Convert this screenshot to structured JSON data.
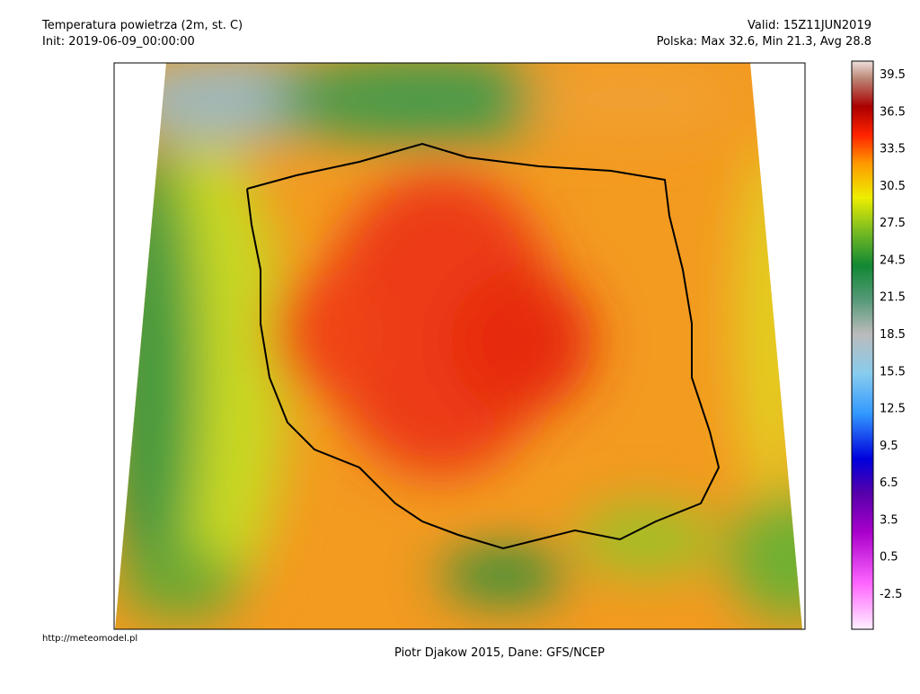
{
  "header": {
    "title": "Temperatura powietrza (2m, st. C)",
    "init": "Init: 2019-06-09_00:00:00",
    "valid": "Valid: 15Z11JUN2019",
    "stats": "Polska: Max 32.6, Min 21.3, Avg 28.8"
  },
  "colorbar": {
    "labels": [
      "39.5",
      "36.5",
      "33.5",
      "30.5",
      "27.5",
      "24.5",
      "21.5",
      "18.5",
      "15.5",
      "12.5",
      "9.5",
      "6.5",
      "3.5",
      "0.5",
      "-2.5"
    ]
  },
  "footer": {
    "url": "http://meteomodel.pl",
    "credit": "Piotr Djakow 2015, Dane: GFS/NCEP"
  }
}
